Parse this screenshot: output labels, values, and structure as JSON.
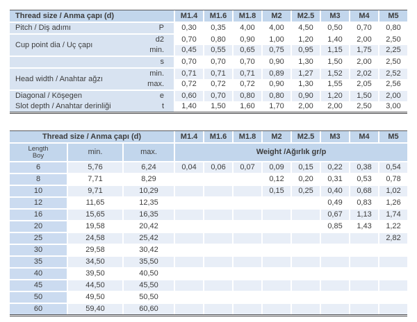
{
  "table1": {
    "header_label": "Thread size / Anma çapı (d)",
    "columns": [
      "M1.4",
      "M1.6",
      "M1.8",
      "M2",
      "M2.5",
      "M3",
      "M4",
      "M5"
    ],
    "rows": [
      {
        "label": "Pitch / Diş adımı",
        "param": "P",
        "values": [
          "0,30",
          "0,35",
          "4,00",
          "4,00",
          "4,50",
          "0,50",
          "0,70",
          "0,80"
        ],
        "shaded": false,
        "group_start": true
      },
      {
        "label": "Cup point dia / Uç çapı",
        "label_rowspan": 2,
        "param": "d2",
        "values": [
          "0,70",
          "0,80",
          "0,90",
          "1,00",
          "1,20",
          "1,40",
          "2,00",
          "2,50"
        ],
        "shaded": false,
        "group_start": true
      },
      {
        "param": "min.",
        "values": [
          "0,45",
          "0,55",
          "0,65",
          "0,75",
          "0,95",
          "1,15",
          "1,75",
          "2,25"
        ],
        "shaded": true,
        "group_start": false
      },
      {
        "label": "",
        "param": "s",
        "values": [
          "0,70",
          "0,70",
          "0,70",
          "0,90",
          "1,30",
          "1,50",
          "2,00",
          "2,50"
        ],
        "shaded": false,
        "group_start": true
      },
      {
        "label": "Head width / Anahtar ağzı",
        "label_rowspan": 2,
        "param": "min.",
        "values": [
          "0,71",
          "0,71",
          "0,71",
          "0,89",
          "1,27",
          "1,52",
          "2,02",
          "2,52"
        ],
        "shaded": true,
        "group_start": true
      },
      {
        "param": "max.",
        "values": [
          "0,72",
          "0,72",
          "0,72",
          "0,90",
          "1,30",
          "1,55",
          "2,05",
          "2,56"
        ],
        "shaded": false,
        "group_start": false
      },
      {
        "label": "Diagonal / Köşegen",
        "param": "e",
        "values": [
          "0,60",
          "0,70",
          "0,80",
          "0,80",
          "0,90",
          "1,20",
          "1,50",
          "2,00"
        ],
        "shaded": true,
        "group_start": true
      },
      {
        "label": "Slot depth / Anahtar derinliği",
        "param": "t",
        "values": [
          "1,40",
          "1,50",
          "1,60",
          "1,70",
          "2,00",
          "2,00",
          "2,50",
          "3,00"
        ],
        "shaded": false,
        "group_start": false
      }
    ]
  },
  "table2": {
    "header_label": "Thread size / Anma çapı (d)",
    "columns": [
      "M1.4",
      "M1.6",
      "M1.8",
      "M2",
      "M2.5",
      "M3",
      "M4",
      "M5"
    ],
    "length_label": "Length",
    "length_label2": "Boy",
    "min_label": "min.",
    "max_label": "max.",
    "weight_label": "Weight /Ağırlık gr/p",
    "rows": [
      {
        "length": "6",
        "min": "5,76",
        "max": "6,24",
        "weights": [
          "0,04",
          "0,06",
          "0,07",
          "0,09",
          "0,15",
          "0,22",
          "0,38",
          "0,54"
        ],
        "shaded": true
      },
      {
        "length": "8",
        "min": "7,71",
        "max": "8,29",
        "weights": [
          "",
          "",
          "",
          "0,12",
          "0,20",
          "0,31",
          "0,53",
          "0,78"
        ],
        "shaded": false
      },
      {
        "length": "10",
        "min": "9,71",
        "max": "10,29",
        "weights": [
          "",
          "",
          "",
          "0,15",
          "0,25",
          "0,40",
          "0,68",
          "1,02"
        ],
        "shaded": true
      },
      {
        "length": "12",
        "min": "11,65",
        "max": "12,35",
        "weights": [
          "",
          "",
          "",
          "",
          "",
          "0,49",
          "0,83",
          "1,26"
        ],
        "shaded": false
      },
      {
        "length": "16",
        "min": "15,65",
        "max": "16,35",
        "weights": [
          "",
          "",
          "",
          "",
          "",
          "0,67",
          "1,13",
          "1,74"
        ],
        "shaded": true
      },
      {
        "length": "20",
        "min": "19,58",
        "max": "20,42",
        "weights": [
          "",
          "",
          "",
          "",
          "",
          "0,85",
          "1,43",
          "1,22"
        ],
        "shaded": false
      },
      {
        "length": "25",
        "min": "24,58",
        "max": "25,42",
        "weights": [
          "",
          "",
          "",
          "",
          "",
          "",
          "",
          "2,82"
        ],
        "shaded": true
      },
      {
        "length": "30",
        "min": "29,58",
        "max": "30,42",
        "weights": [
          "",
          "",
          "",
          "",
          "",
          "",
          "",
          ""
        ],
        "shaded": false
      },
      {
        "length": "35",
        "min": "34,50",
        "max": "35,50",
        "weights": [
          "",
          "",
          "",
          "",
          "",
          "",
          "",
          ""
        ],
        "shaded": true
      },
      {
        "length": "40",
        "min": "39,50",
        "max": "40,50",
        "weights": [
          "",
          "",
          "",
          "",
          "",
          "",
          "",
          ""
        ],
        "shaded": false
      },
      {
        "length": "45",
        "min": "44,50",
        "max": "45,50",
        "weights": [
          "",
          "",
          "",
          "",
          "",
          "",
          "",
          ""
        ],
        "shaded": true
      },
      {
        "length": "50",
        "min": "49,50",
        "max": "50,50",
        "weights": [
          "",
          "",
          "",
          "",
          "",
          "",
          "",
          ""
        ],
        "shaded": false
      },
      {
        "length": "60",
        "min": "59,40",
        "max": "60,60",
        "weights": [
          "",
          "",
          "",
          "",
          "",
          "",
          "",
          ""
        ],
        "shaded": true
      }
    ]
  }
}
